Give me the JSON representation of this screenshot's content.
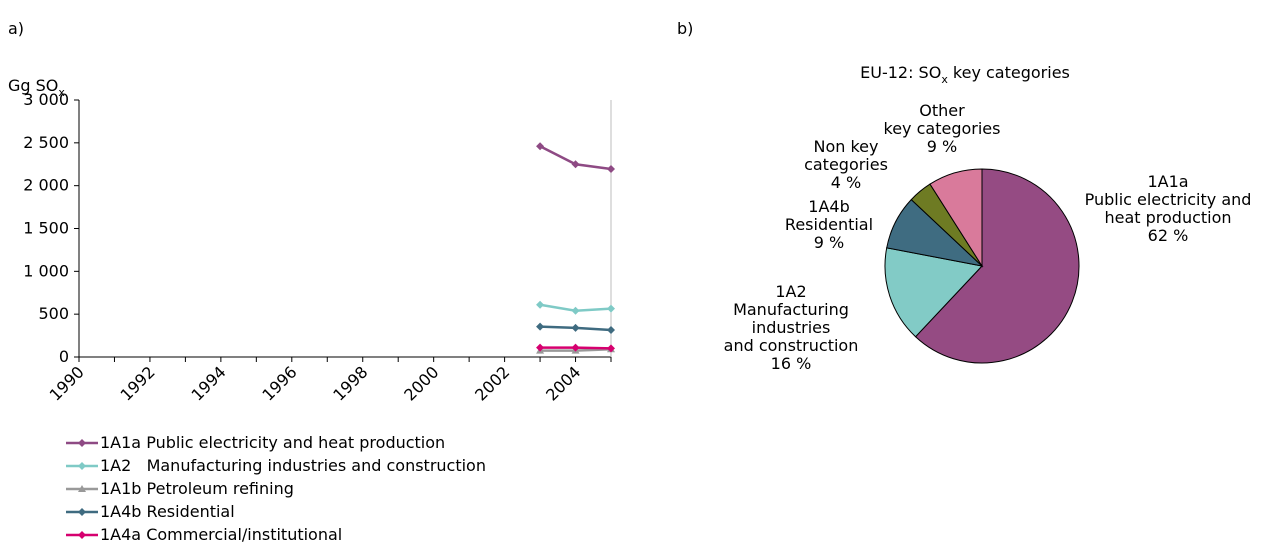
{
  "panel_labels": {
    "a": "a)",
    "b": "b)"
  },
  "line_chart": {
    "ylabel_main": "Gg SO",
    "ylabel_sub": "x",
    "ytick_labels": [
      "0",
      "500",
      "1 000",
      "1 500",
      "2 000",
      "2 500",
      "3 000"
    ],
    "xtick_labels": [
      "1990",
      "1992",
      "1994",
      "1996",
      "1998",
      "2000",
      "2002",
      "2004"
    ],
    "legend": [
      {
        "label": "1A1a Public electricity and heat production"
      },
      {
        "label": "1A2   Manufacturing industries and construction"
      },
      {
        "label": "1A1b Petroleum refining"
      },
      {
        "label": "1A4b Residential"
      },
      {
        "label": "1A4a Commercial/institutional"
      }
    ]
  },
  "pie_chart": {
    "title_main": "EU-12: SO",
    "title_sub": "x",
    "title_rest": " key categories",
    "slice_labels": [
      [
        "1A1a",
        "Public electricity and",
        "heat production",
        "62 %"
      ],
      [
        "1A2",
        "Manufacturing",
        "industries",
        "and construction",
        "16 %"
      ],
      [
        "1A4b",
        "Residential",
        "9 %"
      ],
      [
        "Non key",
        "categories",
        "4 %"
      ],
      [
        "Other",
        "key categories",
        "9 %"
      ]
    ]
  },
  "chart_data": [
    {
      "type": "line",
      "ylabel": "Gg SOx",
      "ylim": [
        0,
        3000
      ],
      "xlim": [
        1990,
        2005
      ],
      "yticks": [
        0,
        500,
        1000,
        1500,
        2000,
        2500,
        3000
      ],
      "xticks": [
        1990,
        1992,
        1994,
        1996,
        1998,
        2000,
        2002,
        2004
      ],
      "grid": false,
      "legend_position": "bottom",
      "x": [
        2003,
        2004,
        2005
      ],
      "series": [
        {
          "name": "1A1a Public electricity and heat production",
          "values": [
            2460,
            2250,
            2195
          ],
          "color": "#8e4a84",
          "marker": "diamond"
        },
        {
          "name": "1A2   Manufacturing industries and construction",
          "values": [
            610,
            540,
            565
          ],
          "color": "#7fcac6",
          "marker": "diamond"
        },
        {
          "name": "1A1b Petroleum refining",
          "values": [
            75,
            75,
            90
          ],
          "color": "#999999",
          "marker": "triangle"
        },
        {
          "name": "1A4b Residential",
          "values": [
            355,
            340,
            315
          ],
          "color": "#3f6b80",
          "marker": "diamond"
        },
        {
          "name": "1A4a Commercial/institutional",
          "values": [
            110,
            110,
            100
          ],
          "color": "#d6006f",
          "marker": "diamond"
        }
      ]
    },
    {
      "type": "pie",
      "title": "EU-12: SOx key categories",
      "slices": [
        {
          "label": "1A1a Public electricity and heat production",
          "value": 62,
          "color": "#954b83"
        },
        {
          "label": "1A2 Manufacturing industries and construction",
          "value": 16,
          "color": "#82cbc6"
        },
        {
          "label": "1A4b Residential",
          "value": 9,
          "color": "#3f6c81"
        },
        {
          "label": "Non key categories",
          "value": 4,
          "color": "#6e7b23"
        },
        {
          "label": "Other key categories",
          "value": 9,
          "color": "#d97a9b"
        }
      ]
    }
  ]
}
